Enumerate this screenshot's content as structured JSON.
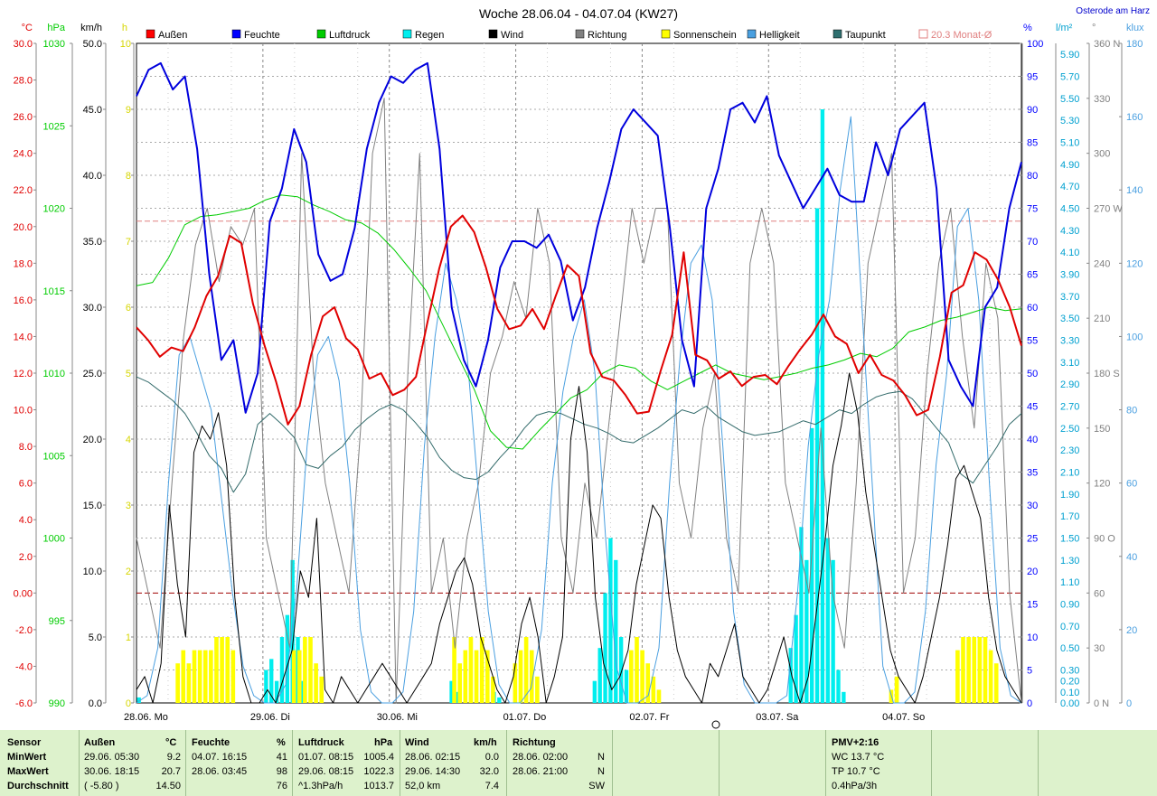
{
  "title": "Woche 28.06.04 - 04.07.04 (KW27)",
  "location": "Osterode am Harz",
  "legend": [
    {
      "label": "Außen",
      "color": "#ff0000"
    },
    {
      "label": "Feuchte",
      "color": "#0000ff"
    },
    {
      "label": "Luftdruck",
      "color": "#00cc00"
    },
    {
      "label": "Regen",
      "color": "#00eeee"
    },
    {
      "label": "Wind",
      "color": "#000000"
    },
    {
      "label": "Richtung",
      "color": "#808080"
    },
    {
      "label": "Sonnenschein",
      "color": "#ffff00"
    },
    {
      "label": "Helligkeit",
      "color": "#4aa0e0"
    },
    {
      "label": "Taupunkt",
      "color": "#2f6f6f"
    }
  ],
  "monthly_avg_label": "20.3 Monat-Ø",
  "units": {
    "temp": "°C",
    "pressure": "hPa",
    "wind": "km/h",
    "sun": "h",
    "humidity": "%",
    "rain": "l/m²",
    "direction": "°",
    "lux": "klux"
  },
  "chart_data": {
    "type": "line",
    "title": "Woche 28.06.04 - 04.07.04 (KW27)",
    "x_labels": [
      "28.06. Mo",
      "29.06. Di",
      "30.06. Mi",
      "01.07. Do",
      "02.07. Fr",
      "03.07. Sa",
      "04.07. So"
    ],
    "axes": {
      "temp": {
        "min": -6.0,
        "max": 30.0,
        "ticks": [
          "30.0",
          "28.0",
          "26.0",
          "24.0",
          "22.0",
          "20.0",
          "18.0",
          "16.0",
          "14.0",
          "12.0",
          "10.0",
          "8.0",
          "6.0",
          "4.0",
          "2.0",
          "0.00",
          "-2.0",
          "-4.0",
          "-6.0"
        ]
      },
      "pressure": {
        "min": 990,
        "max": 1030,
        "ticks": [
          "1030",
          "1025",
          "1020",
          "1015",
          "1010",
          "1005",
          "1000",
          "995",
          "990"
        ]
      },
      "wind": {
        "min": 0,
        "max": 50,
        "ticks": [
          "50.0",
          "45.0",
          "40.0",
          "35.0",
          "30.0",
          "25.0",
          "20.0",
          "15.0",
          "10.0",
          "5.0",
          "0.0"
        ]
      },
      "sun": {
        "min": 0,
        "max": 10,
        "ticks": [
          "10",
          "9",
          "8",
          "7",
          "6",
          "5",
          "4",
          "3",
          "2",
          "1",
          "0"
        ]
      },
      "humidity": {
        "min": 0,
        "max": 100,
        "ticks": [
          "100",
          "95",
          "90",
          "85",
          "80",
          "75",
          "70",
          "65",
          "60",
          "55",
          "50",
          "45",
          "40",
          "35",
          "30",
          "25",
          "20",
          "15",
          "10",
          "5",
          "0"
        ]
      },
      "rain": {
        "min": 0,
        "max": 6.0,
        "ticks": [
          "5.90",
          "5.70",
          "5.50",
          "5.30",
          "5.10",
          "4.90",
          "4.70",
          "4.50",
          "4.30",
          "4.10",
          "3.90",
          "3.70",
          "3.50",
          "3.30",
          "3.10",
          "2.90",
          "2.70",
          "2.50",
          "2.30",
          "2.10",
          "1.90",
          "1.70",
          "1.50",
          "1.30",
          "1.10",
          "0.90",
          "0.70",
          "0.50",
          "0.30",
          "0.10"
        ],
        "ticks2": [
          "0.20",
          "0.00"
        ]
      },
      "direction": {
        "min": 0,
        "max": 360,
        "ticks": [
          "360 N",
          "330",
          "300",
          "270 W",
          "240",
          "210",
          "180 S",
          "150",
          "120",
          "90 O",
          "60",
          "30",
          "0 N"
        ]
      },
      "lux": {
        "min": 0,
        "max": 180,
        "ticks": [
          "180",
          "160",
          "140",
          "120",
          "100",
          "80",
          "60",
          "40",
          "20",
          "0"
        ]
      }
    },
    "series": [
      {
        "name": "Außen",
        "axis": "temp",
        "color": "#e00000",
        "values": [
          14.5,
          13.8,
          12.9,
          13.4,
          13.2,
          14.5,
          16.2,
          17.3,
          19.5,
          19.1,
          15.8,
          13.5,
          11.5,
          9.2,
          10.2,
          13.0,
          15.1,
          15.6,
          13.9,
          13.3,
          11.7,
          12.0,
          10.8,
          11.1,
          11.8,
          14.8,
          17.7,
          20.0,
          20.6,
          19.7,
          17.8,
          15.5,
          14.4,
          14.6,
          15.5,
          14.4,
          16.2,
          17.9,
          17.3,
          13.1,
          11.8,
          11.6,
          10.8,
          9.8,
          9.9,
          12.1,
          14.1,
          18.6,
          13.0,
          12.7,
          11.7,
          12.1,
          11.3,
          11.8,
          11.9,
          11.4,
          12.4,
          13.3,
          14.1,
          15.2,
          14.0,
          13.6,
          12.0,
          13.0,
          11.9,
          11.6,
          10.8,
          9.7,
          10.0,
          12.9,
          16.4,
          16.8,
          18.6,
          18.2,
          17.1,
          15.6,
          13.5
        ]
      },
      {
        "name": "Feuchte",
        "axis": "humidity",
        "color": "#0000dd",
        "values": [
          92,
          96,
          97,
          93,
          95,
          84,
          65,
          52,
          55,
          44,
          50,
          73,
          78,
          87,
          82,
          68,
          64,
          65,
          72,
          84,
          91,
          95,
          94,
          96,
          97,
          84,
          60,
          52,
          48,
          55,
          66,
          70,
          70,
          69,
          71,
          67,
          58,
          63,
          72,
          79,
          87,
          90,
          88,
          86,
          72,
          55,
          48,
          75,
          81,
          90,
          91,
          88,
          92,
          83,
          79,
          75,
          78,
          81,
          77,
          76,
          76,
          85,
          80,
          87,
          89,
          91,
          78,
          52,
          48,
          45,
          60,
          63,
          75,
          82
        ]
      },
      {
        "name": "Luftdruck",
        "axis": "pressure",
        "color": "#00cc00",
        "values": [
          1015.3,
          1015.5,
          1017.0,
          1019.0,
          1019.5,
          1019.6,
          1019.8,
          1020.0,
          1020.5,
          1020.8,
          1020.7,
          1020.2,
          1019.8,
          1019.3,
          1019.1,
          1018.5,
          1017.5,
          1016.3,
          1015.0,
          1013.0,
          1011.0,
          1009.0,
          1006.5,
          1005.5,
          1005.4,
          1006.5,
          1007.5,
          1008.5,
          1009.0,
          1010.0,
          1010.5,
          1010.3,
          1009.5,
          1009.0,
          1009.5,
          1010.0,
          1010.5,
          1010.0,
          1009.8,
          1009.6,
          1009.8,
          1010.0,
          1010.3,
          1010.5,
          1010.8,
          1011.2,
          1011.0,
          1011.5,
          1012.5,
          1012.8,
          1013.2,
          1013.4,
          1013.7,
          1014.0,
          1013.8,
          1013.9
        ]
      },
      {
        "name": "Taupunkt",
        "axis": "temp",
        "color": "#336b6b",
        "values": [
          11.8,
          11.5,
          11.0,
          10.5,
          9.8,
          8.7,
          7.5,
          6.8,
          5.5,
          6.5,
          9.2,
          9.8,
          9.2,
          8.5,
          7.0,
          6.8,
          7.5,
          8.0,
          8.9,
          9.5,
          10.0,
          10.3,
          10.0,
          9.3,
          8.5,
          7.4,
          6.7,
          6.3,
          6.2,
          6.6,
          7.4,
          8.1,
          9.0,
          9.7,
          9.9,
          9.8,
          9.5,
          9.2,
          9.0,
          8.7,
          8.3,
          8.2,
          8.6,
          9.0,
          9.5,
          10.0,
          9.8,
          10.2,
          9.6,
          9.2,
          8.8,
          8.6,
          8.7,
          8.8,
          9.1,
          9.4,
          9.2,
          9.6,
          10.0,
          9.8,
          10.3,
          10.7,
          10.9,
          11.0,
          10.6,
          9.8,
          9.0,
          8.2,
          6.5,
          6.0,
          7.0,
          8.0,
          9.2,
          9.8
        ]
      },
      {
        "name": "Wind",
        "axis": "wind",
        "color": "#000000",
        "values": [
          1,
          2,
          0,
          3,
          15,
          9,
          5,
          19,
          21,
          20,
          22,
          18,
          8,
          2,
          0,
          0,
          1,
          0,
          2,
          4,
          10,
          8,
          14,
          1,
          0,
          2,
          1,
          0,
          1,
          2,
          3,
          2,
          1,
          0,
          1,
          2,
          3,
          6,
          8,
          10,
          11,
          9,
          5,
          3,
          1,
          0,
          2,
          6,
          8,
          5,
          0,
          2,
          5,
          20,
          24,
          19,
          8,
          3,
          1,
          2,
          4,
          9,
          12,
          15,
          14,
          8,
          4,
          2,
          1,
          0,
          3,
          2,
          4,
          6,
          2,
          1,
          0,
          1,
          3,
          5,
          2,
          0,
          2,
          7,
          12,
          18,
          21,
          25,
          22,
          16,
          12,
          8,
          4,
          2,
          1,
          0,
          2,
          5,
          8,
          12,
          17,
          18,
          16,
          14,
          8,
          4,
          2,
          1,
          0
        ]
      },
      {
        "name": "Richtung",
        "axis": "direction",
        "color": "#808080",
        "values": [
          90,
          60,
          30,
          120,
          200,
          250,
          270,
          230,
          260,
          250,
          270,
          90,
          60,
          30,
          300,
          180,
          120,
          90,
          60,
          150,
          300,
          330,
          0,
          180,
          300,
          60,
          90,
          30,
          90,
          120,
          180,
          200,
          230,
          210,
          270,
          240,
          90,
          60,
          120,
          90,
          150,
          210,
          270,
          240,
          270,
          270,
          120,
          90,
          150,
          180,
          90,
          60,
          240,
          270,
          240,
          120,
          90,
          60,
          150,
          60,
          30,
          120,
          240,
          270,
          300,
          60,
          90,
          180,
          240,
          270,
          200,
          150,
          240,
          210,
          60,
          0
        ]
      },
      {
        "name": "Helligkeit",
        "axis": "lux",
        "color": "#4a9fe0",
        "values": [
          0,
          2,
          15,
          60,
          95,
          100,
          90,
          80,
          55,
          30,
          10,
          2,
          0,
          0,
          5,
          30,
          70,
          95,
          100,
          88,
          60,
          20,
          3,
          0,
          0,
          3,
          25,
          70,
          100,
          120,
          110,
          95,
          60,
          25,
          5,
          0,
          0,
          4,
          20,
          60,
          85,
          100,
          110,
          90,
          45,
          10,
          0,
          0,
          2,
          15,
          60,
          95,
          120,
          125,
          110,
          70,
          25,
          5,
          0,
          0,
          0,
          2,
          30,
          70,
          95,
          110,
          140,
          160,
          110,
          60,
          10,
          0,
          0,
          3,
          25,
          65,
          90,
          130,
          135,
          110,
          60,
          15,
          2,
          0
        ]
      },
      {
        "name": "Regen",
        "axis": "rain",
        "color": "#00eeee",
        "type": "bar",
        "values": [
          0.05,
          0,
          0,
          0,
          0,
          0,
          0,
          0,
          0,
          0,
          0,
          0,
          0,
          0,
          0,
          0,
          0,
          0,
          0,
          0,
          0,
          0,
          0,
          0,
          0.3,
          0.4,
          0.2,
          0.6,
          0.8,
          1.3,
          0.6,
          0.2,
          0,
          0,
          0,
          0,
          0,
          0,
          0,
          0,
          0,
          0,
          0,
          0,
          0,
          0,
          0,
          0,
          0,
          0,
          0,
          0,
          0,
          0,
          0,
          0,
          0,
          0,
          0,
          0.2,
          0.1,
          0,
          0,
          0,
          0,
          0,
          0,
          0.1,
          0.05,
          0,
          0,
          0,
          0,
          0,
          0,
          0,
          0,
          0,
          0,
          0,
          0,
          0,
          0,
          0,
          0,
          0,
          0.2,
          0.5,
          1.0,
          1.5,
          1.3,
          0.6,
          0.3,
          0,
          0,
          0,
          0,
          0,
          0,
          0,
          0,
          0,
          0,
          0,
          0,
          0,
          0,
          0,
          0,
          0,
          0,
          0,
          0,
          0,
          0,
          0,
          0,
          0,
          0,
          0,
          0,
          0,
          0,
          0.5,
          0.8,
          1.6,
          1.3,
          2.5,
          4.5,
          5.4,
          1.5,
          1.3,
          0.3,
          0.1,
          0,
          0,
          0,
          0,
          0,
          0,
          0,
          0,
          0,
          0,
          0,
          0,
          0,
          0,
          0,
          0,
          0,
          0,
          0,
          0,
          0,
          0,
          0,
          0,
          0,
          0,
          0,
          0,
          0,
          0,
          0,
          0,
          0
        ]
      },
      {
        "name": "Sonnenschein",
        "axis": "sun",
        "color": "#ffff00",
        "type": "bar",
        "values": [
          0,
          0,
          0,
          0,
          0,
          0,
          0,
          0.6,
          0.8,
          0.6,
          0.8,
          0.8,
          0.8,
          0.8,
          1.0,
          1.0,
          1.0,
          0.8,
          0,
          0,
          0,
          0,
          0,
          0,
          0,
          0,
          0,
          0,
          0.8,
          0.8,
          1.0,
          1.0,
          0.6,
          0.4,
          0,
          0,
          0,
          0,
          0,
          0,
          0,
          0,
          0,
          0,
          0,
          0,
          0,
          0,
          0,
          0,
          0,
          0,
          0,
          0,
          0,
          0,
          0,
          1.0,
          0.6,
          0.8,
          1.0,
          0.8,
          1.0,
          0.8,
          0.4,
          0,
          0,
          0,
          0.6,
          0.8,
          1.0,
          0.8,
          0.4,
          0,
          0,
          0,
          0,
          0,
          0,
          0,
          0,
          0,
          0,
          0,
          0,
          0,
          0,
          0,
          0,
          0.8,
          1.0,
          0.8,
          0.6,
          0.4,
          0.2,
          0,
          0,
          0,
          0,
          0,
          0,
          0,
          0,
          0,
          0,
          0,
          0,
          0,
          0,
          0,
          0,
          0,
          0,
          0,
          0,
          0,
          0,
          0,
          0,
          0,
          0,
          0,
          0,
          0,
          0,
          0,
          0,
          0,
          0,
          0,
          0,
          0,
          0,
          0,
          0,
          0,
          0.2,
          0.4,
          0,
          0,
          0,
          0,
          0,
          0,
          0,
          0,
          0,
          0,
          0.8,
          1.0,
          1.0,
          1.0,
          1.0,
          1.0,
          0.8,
          0.6,
          0,
          0,
          0,
          0
        ]
      }
    ],
    "reference_lines": [
      {
        "axis": "temp",
        "value": 20.3,
        "label": "20.3 Monat-Ø",
        "color": "#e08080"
      },
      {
        "axis": "temp",
        "value": 0,
        "color": "#a00000"
      }
    ]
  },
  "stats": {
    "header": [
      "Sensor",
      "Außen",
      "°C",
      "Feuchte",
      "%",
      "Luftdruck",
      "hPa",
      "Wind",
      "km/h",
      "Richtung",
      "PMV+2:16"
    ],
    "rows": [
      {
        "label": "MinWert",
        "aussen_time": "29.06.  05:30",
        "aussen_val": "9.2",
        "feuchte_time": "04.07.  16:15",
        "feuchte_val": "41",
        "druck_time": "01.07.  08:15",
        "druck_val": "1005.4",
        "wind_time": "28.06.  02:15",
        "wind_val": "0.0",
        "richtung_time": "28.06.  02:00",
        "richtung_val": "N",
        "extra": "WC 13.7 °C"
      },
      {
        "label": "MaxWert",
        "aussen_time": "30.06.  18:15",
        "aussen_val": "20.7",
        "feuchte_time": "28.06.  03:45",
        "feuchte_val": "98",
        "druck_time": "29.06.  08:15",
        "druck_val": "1022.3",
        "wind_time": "29.06.  14:30",
        "wind_val": "32.0",
        "richtung_time": "28.06.  21:00",
        "richtung_val": "N",
        "extra": "TP 10.7 °C"
      },
      {
        "label": "Durchschnitt",
        "aussen_time": "( -5.80 )",
        "aussen_val": "14.50",
        "feuchte_time": "",
        "feuchte_val": "76",
        "druck_time": "^1.3hPa/h",
        "druck_val": "1013.7",
        "wind_time": "52,0 km",
        "wind_val": "7.4",
        "richtung_time": "",
        "richtung_val": "SW",
        "extra": "0.4hPa/3h"
      }
    ]
  }
}
